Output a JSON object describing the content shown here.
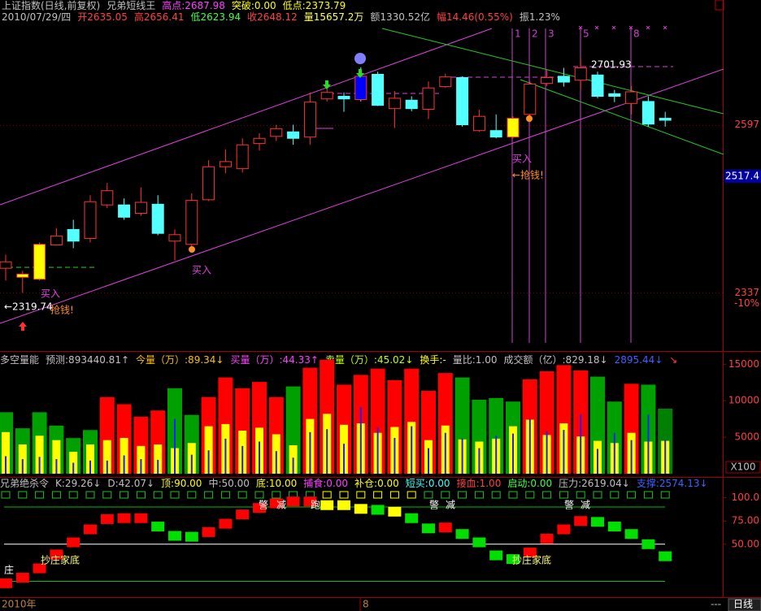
{
  "chart_data": [
    {
      "type": "candlestick",
      "header_lines": [
        [
          {
            "text": "上证指数(日线,前复权)",
            "color": "#c0c0c0"
          },
          {
            "text": "兄弟短线王",
            "color": "#c0c0c0"
          },
          {
            "text": "高点:2687.98",
            "color": "#ff40ff"
          },
          {
            "text": "突破:0.00",
            "color": "#ffff00"
          },
          {
            "text": "低点:2373.79",
            "color": "#ffff00"
          }
        ],
        [
          {
            "text": "2010/07/29/四",
            "color": "#c0c0c0"
          },
          {
            "text": "开2635.05",
            "color": "#ff4040"
          },
          {
            "text": "高2656.41",
            "color": "#ff4040"
          },
          {
            "text": "低2623.94",
            "color": "#40ff40"
          },
          {
            "text": "收2648.12",
            "color": "#ff4040"
          },
          {
            "text": "量15657.2万",
            "color": "#ffff60"
          },
          {
            "text": "额1330.52亿",
            "color": "#c0c0c0"
          },
          {
            "text": "幅14.46(0.55%)",
            "color": "#ff4040"
          },
          {
            "text": "振1.23%",
            "color": "#c0c0c0"
          }
        ]
      ],
      "open": [
        2375,
        2361,
        2358,
        2411,
        2435,
        2421,
        2473,
        2473,
        2460,
        2474,
        2417,
        2412,
        2481,
        2532,
        2529,
        2568,
        2579,
        2586,
        2578,
        2637,
        2641,
        2672,
        2675,
        2622,
        2635,
        2621,
        2656,
        2670,
        2588,
        2588,
        2578,
        2613,
        2661,
        2672,
        2666,
        2674,
        2645,
        2630,
        2633,
        2607
      ],
      "close": [
        2385,
        2366,
        2412,
        2425,
        2417,
        2478,
        2495,
        2454,
        2477,
        2429,
        2427,
        2480,
        2532,
        2540,
        2566,
        2576,
        2591,
        2576,
        2632,
        2647,
        2637,
        2636,
        2627,
        2638,
        2622,
        2654,
        2671,
        2597,
        2610,
        2578,
        2607,
        2660,
        2670,
        2663,
        2685,
        2641,
        2641,
        2648,
        2598,
        2604
      ],
      "high": [
        2396,
        2371,
        2415,
        2437,
        2450,
        2488,
        2507,
        2483,
        2500,
        2488,
        2435,
        2491,
        2542,
        2559,
        2576,
        2584,
        2597,
        2597,
        2647,
        2664,
        2647,
        2686,
        2679,
        2649,
        2641,
        2664,
        2676,
        2672,
        2620,
        2613,
        2610,
        2664,
        2682,
        2685,
        2698,
        2679,
        2651,
        2657,
        2641,
        2617
      ],
      "low": [
        2356,
        2337,
        2356,
        2410,
        2406,
        2415,
        2468,
        2450,
        2456,
        2426,
        2387,
        2406,
        2479,
        2522,
        2523,
        2557,
        2572,
        2566,
        2566,
        2633,
        2617,
        2633,
        2626,
        2592,
        2618,
        2606,
        2654,
        2594,
        2586,
        2576,
        2576,
        2601,
        2657,
        2656,
        2651,
        2638,
        2632,
        2613,
        2594,
        2594
      ],
      "up_color": "#ff3232",
      "down_color": "#54ffff",
      "special": [
        {
          "index": 1,
          "color": "#ffff00"
        },
        {
          "index": 2,
          "color": "#ffff00"
        },
        {
          "index": 21,
          "color": "#0000ff"
        },
        {
          "index": 30,
          "color": "#ffff00"
        }
      ],
      "ylim": [
        2247,
        2790
      ],
      "yticks": [
        2597,
        2337
      ],
      "grid": true,
      "current_price": 2517.4,
      "pct_label": "-10%",
      "annotations": [
        "买入",
        "买入",
        "买入",
        "抢钱!",
        "←抢钱!",
        "←2319.74",
        "2701.93"
      ],
      "vline_labels": [
        "1",
        "2",
        "3",
        "5",
        "8"
      ]
    },
    {
      "type": "bar",
      "header": [
        {
          "text": "多空量能",
          "color": "#c0c0c0"
        },
        {
          "text": "预测:893440.81↑",
          "color": "#c0c0c0"
        },
        {
          "text": "今量（万）:89.34↓",
          "color": "#ffc000"
        },
        {
          "text": "买量（万）:44.33↑",
          "color": "#ff40ff"
        },
        {
          "text": "卖量（万）:45.02↓",
          "color": "#c0ff00"
        },
        {
          "text": "换手:-",
          "color": "#ffff00"
        },
        {
          "text": "量比:1.00",
          "color": "#c0c0c0"
        },
        {
          "text": "成交额（亿）:829.18↓",
          "color": "#c0c0c0"
        },
        {
          "text": "2895.44↓",
          "color": "#4060ff"
        },
        {
          "text": "↘",
          "color": "#ff4040"
        }
      ],
      "series": [
        {
          "colors": [
            "#00a000",
            "#00a000",
            "#00a000",
            "#00a000",
            "#00a000",
            "#00a000",
            "#ff0000",
            "#ff0000",
            "#ff0000",
            "#ff0000",
            "#00a000",
            "#00a000",
            "#ff0000",
            "#ff0000",
            "#ff0000",
            "#ff0000",
            "#ff0000",
            "#00a000",
            "#ff0000",
            "#ff0000",
            "#ff0000",
            "#ff0000",
            "#ff0000",
            "#ff0000",
            "#ff0000",
            "#ff0000",
            "#ff0000",
            "#00a000",
            "#00a000",
            "#00a000",
            "#00a000",
            "#ff0000",
            "#ff0000",
            "#ff0000",
            "#ff0000",
            "#00a000",
            "#00a000",
            "#ff0000",
            "#00a000",
            "#008000"
          ],
          "values": [
            8420,
            6220,
            8420,
            6590,
            4880,
            5980,
            10490,
            9520,
            7810,
            8660,
            11710,
            8050,
            10490,
            13180,
            11710,
            12570,
            10490,
            11960,
            14520,
            15620,
            12200,
            13540,
            14400,
            12810,
            14400,
            11350,
            13790,
            13180,
            10130,
            10370,
            9880,
            12930,
            14030,
            14880,
            14150,
            13300,
            9880,
            12320,
            12200,
            8910
          ]
        },
        {
          "color": "#ffff00",
          "values": [
            5700,
            4000,
            5200,
            4600,
            3000,
            4000,
            4600,
            4900,
            3800,
            4000,
            3500,
            4200,
            6500,
            6800,
            5900,
            6300,
            5400,
            3900,
            7500,
            8200,
            6700,
            6900,
            5600,
            6400,
            7100,
            4600,
            6600,
            4700,
            4400,
            4800,
            6500,
            7400,
            5300,
            6900,
            5100,
            4500,
            4200,
            5600,
            4400,
            4500
          ]
        },
        {
          "color": "#2020ff",
          "values": [
            2400,
            2000,
            2300,
            2000,
            1500,
            1800,
            1800,
            2500,
            2000,
            1900,
            7500,
            2600,
            3200,
            4800,
            3800,
            4400,
            3100,
            2200,
            5700,
            6100,
            4100,
            9100,
            6300,
            4900,
            6500,
            3500,
            5600,
            4800,
            3500,
            5200,
            5500,
            7500,
            5800,
            6000,
            8100,
            3400,
            5600,
            4600,
            8100,
            4600
          ]
        }
      ],
      "ylim": [
        0,
        16700
      ],
      "yticks": [
        5000,
        10000,
        15000
      ],
      "scale_label": "X100"
    },
    {
      "type": "box",
      "header": [
        {
          "text": "兄弟绝杀令",
          "color": "#c0c0c0"
        },
        {
          "text": "K:29.26↓",
          "color": "#c0c0c0"
        },
        {
          "text": "D:42.07↓",
          "color": "#c0c0c0"
        },
        {
          "text": "顶:90.00",
          "color": "#ffff00"
        },
        {
          "text": "中:50.00",
          "color": "#c0c0c0"
        },
        {
          "text": "底:10.00",
          "color": "#ffff00"
        },
        {
          "text": "捕食:0.00",
          "color": "#ff40ff"
        },
        {
          "text": "补仓:0.00",
          "color": "#ffff00"
        },
        {
          "text": "短买:0.00",
          "color": "#40ffff"
        },
        {
          "text": "接血:1.00",
          "color": "#ff4040"
        },
        {
          "text": "启动:0.00",
          "color": "#40ff40"
        },
        {
          "text": "压力:2619.04↓",
          "color": "#c0c0c0"
        },
        {
          "text": "支撑:2574.13↓",
          "color": "#4060ff"
        }
      ],
      "values": [
        8,
        14,
        24,
        39,
        52,
        66,
        77,
        78,
        78,
        69,
        59,
        58,
        63,
        72,
        82,
        89,
        94,
        96,
        96,
        92,
        92,
        88,
        87,
        85,
        78,
        67,
        68,
        61,
        52,
        38,
        34,
        41,
        56,
        66,
        75,
        74,
        69,
        61,
        50,
        37
      ],
      "up_color": "#ff0000",
      "down_color": "#00e000",
      "highlight_color": "#ffff00",
      "highlight_indices": [
        19,
        20,
        21,
        23
      ],
      "ylim": [
        -7,
        111
      ],
      "yticks": [
        {
          "value": 50,
          "label": "50.00"
        },
        {
          "value": 75,
          "label": "75.00"
        },
        {
          "value": 100,
          "label": "100.0"
        }
      ],
      "reference_lines": [
        {
          "value": 90,
          "color": "#00c000"
        },
        {
          "value": 50,
          "color": "#ffffff"
        },
        {
          "value": 10,
          "color": "#00c000"
        }
      ],
      "annotations": [
        "庄",
        "抄庄家底",
        "抄庄家底",
        "警",
        "减",
        "跑",
        "警",
        "减",
        "警",
        "减"
      ]
    }
  ],
  "bottom_bar": {
    "start_label": "2010年",
    "month_label": "8",
    "more": "---",
    "period": "日线"
  }
}
